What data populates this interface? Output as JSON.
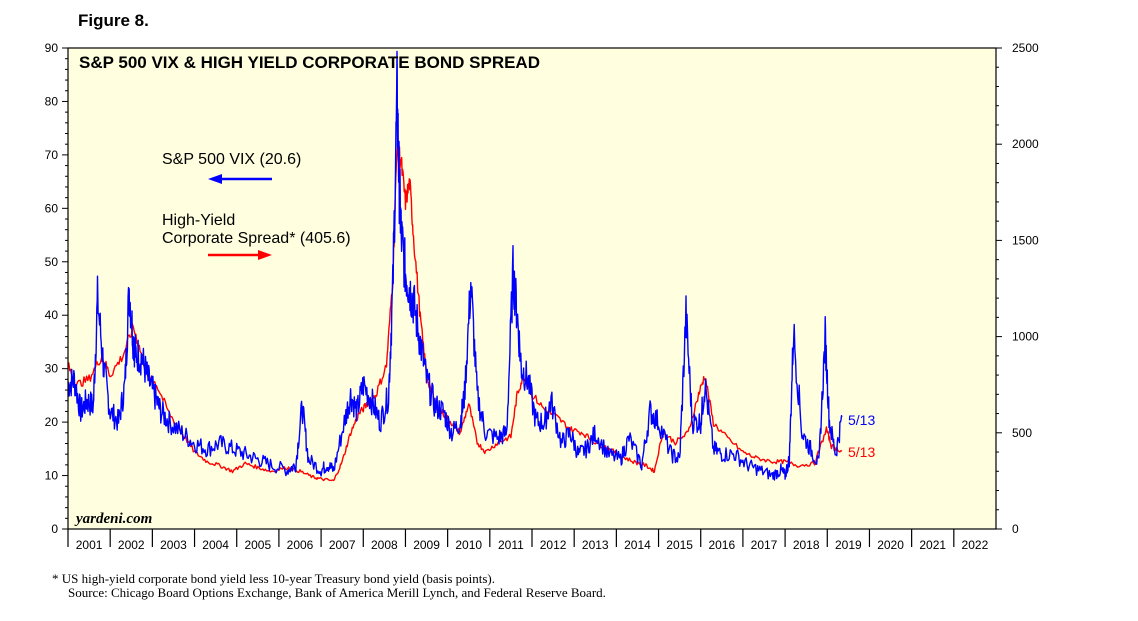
{
  "figure_label": "Figure 8.",
  "brand": "yardeni.com",
  "footnote": {
    "line1": "*   US high-yield corporate bond yield less 10-year Treasury bond yield (basis points).",
    "line2": "Source: Chicago Board Options Exchange, Bank of America Merill Lynch, and Federal Reserve Board."
  },
  "colors": {
    "vix": "#0000ff",
    "spread": "#ff0000",
    "plot_bg": "#ffffe0",
    "frame": "#000000"
  },
  "chart_data": {
    "type": "line",
    "title": "S&P 500 VIX & HIGH YIELD CORPORATE BOND SPREAD",
    "x_range": [
      2001.0,
      2023.0
    ],
    "years": [
      "2001",
      "2002",
      "2003",
      "2004",
      "2005",
      "2006",
      "2007",
      "2008",
      "2009",
      "2010",
      "2011",
      "2012",
      "2013",
      "2014",
      "2015",
      "2016",
      "2017",
      "2018",
      "2019",
      "2020",
      "2021",
      "2022"
    ],
    "y_left": {
      "min": 0,
      "max": 90,
      "ticks": [
        0,
        10,
        20,
        30,
        40,
        50,
        60,
        70,
        80,
        90
      ]
    },
    "y_right": {
      "min": 0,
      "max": 2500,
      "ticks": [
        0,
        500,
        1000,
        1500,
        2000,
        2500
      ]
    },
    "legend": [
      {
        "label": "S&P 500 VIX (20.6)",
        "axis": "left",
        "arrow": "left"
      },
      {
        "label_line1": "High-Yield",
        "label_line2": "Corporate Spread* (405.6)",
        "axis": "right",
        "arrow": "right"
      }
    ],
    "annotations": [
      {
        "text": "5/13",
        "series": "vix"
      },
      {
        "text": "5/13",
        "series": "spread"
      }
    ],
    "series": [
      {
        "name": "S&P 500 VIX (20.6)",
        "axis": "left",
        "color": "#0000ff",
        "x": [
          2001.0,
          2001.15,
          2001.3,
          2001.45,
          2001.6,
          2001.7,
          2001.85,
          2002.0,
          2002.2,
          2002.35,
          2002.45,
          2002.55,
          2002.6,
          2002.75,
          2002.9,
          2003.05,
          2003.2,
          2003.4,
          2003.7,
          2004.0,
          2004.3,
          2004.6,
          2004.9,
          2005.2,
          2005.5,
          2005.8,
          2006.2,
          2006.4,
          2006.55,
          2006.7,
          2007.0,
          2007.15,
          2007.3,
          2007.55,
          2007.7,
          2007.85,
          2008.0,
          2008.2,
          2008.4,
          2008.6,
          2008.7,
          2008.8,
          2008.85,
          2008.9,
          2009.0,
          2009.1,
          2009.2,
          2009.35,
          2009.5,
          2009.7,
          2009.9,
          2010.1,
          2010.3,
          2010.4,
          2010.55,
          2010.7,
          2010.9,
          2011.2,
          2011.4,
          2011.55,
          2011.65,
          2011.75,
          2011.9,
          2012.1,
          2012.3,
          2012.45,
          2012.7,
          2012.9,
          2013.1,
          2013.3,
          2013.5,
          2013.8,
          2014.1,
          2014.3,
          2014.6,
          2014.8,
          2015.0,
          2015.3,
          2015.5,
          2015.65,
          2015.8,
          2016.0,
          2016.1,
          2016.3,
          2016.5,
          2016.8,
          2017.1,
          2017.4,
          2017.7,
          2017.9,
          2018.0,
          2018.1,
          2018.2,
          2018.4,
          2018.6,
          2018.8,
          2018.95,
          2019.05,
          2019.2,
          2019.35
        ],
        "values": [
          27,
          28,
          22,
          24,
          23,
          43,
          30,
          22,
          20,
          27,
          45,
          35,
          33,
          32,
          28,
          25,
          22,
          20,
          18,
          16,
          15,
          16,
          15,
          14,
          13,
          12,
          11,
          12,
          23,
          13,
          11,
          12,
          11,
          20,
          25,
          22,
          27,
          24,
          20,
          25,
          45,
          81,
          65,
          55,
          48,
          45,
          42,
          35,
          28,
          23,
          22,
          18,
          20,
          25,
          46,
          25,
          18,
          17,
          18,
          48,
          40,
          30,
          28,
          20,
          20,
          24,
          16,
          18,
          14,
          15,
          18,
          14,
          13,
          17,
          12,
          22,
          20,
          14,
          13,
          40,
          20,
          20,
          27,
          15,
          14,
          14,
          12,
          11,
          10,
          11,
          10,
          13,
          37,
          18,
          15,
          12,
          36,
          20,
          14,
          21
        ]
      },
      {
        "name": "High-Yield Corporate Spread* (405.6)",
        "axis": "right",
        "color": "#ff0000",
        "x": [
          2001.0,
          2001.2,
          2001.5,
          2001.8,
          2002.0,
          2002.3,
          2002.55,
          2002.75,
          2002.9,
          2003.1,
          2003.4,
          2003.7,
          2004.0,
          2004.3,
          2004.6,
          2004.9,
          2005.2,
          2005.5,
          2005.8,
          2006.2,
          2006.5,
          2006.8,
          2007.0,
          2007.3,
          2007.5,
          2007.7,
          2007.9,
          2008.1,
          2008.3,
          2008.55,
          2008.7,
          2008.8,
          2008.9,
          2009.0,
          2009.1,
          2009.2,
          2009.35,
          2009.5,
          2009.7,
          2009.9,
          2010.1,
          2010.3,
          2010.5,
          2010.7,
          2010.9,
          2011.2,
          2011.5,
          2011.65,
          2011.8,
          2012.0,
          2012.3,
          2012.6,
          2012.9,
          2013.2,
          2013.5,
          2013.8,
          2014.1,
          2014.4,
          2014.7,
          2014.9,
          2015.1,
          2015.4,
          2015.7,
          2015.95,
          2016.1,
          2016.3,
          2016.6,
          2017.0,
          2017.3,
          2017.7,
          2018.0,
          2018.3,
          2018.7,
          2018.98,
          2019.1,
          2019.35
        ],
        "values": [
          850,
          750,
          780,
          900,
          800,
          900,
          1050,
          900,
          800,
          750,
          600,
          500,
          400,
          350,
          330,
          300,
          340,
          320,
          300,
          320,
          300,
          270,
          260,
          250,
          350,
          500,
          600,
          650,
          700,
          850,
          1300,
          2000,
          1900,
          1700,
          1800,
          1500,
          1100,
          800,
          650,
          600,
          550,
          500,
          650,
          450,
          400,
          450,
          480,
          700,
          800,
          700,
          620,
          580,
          520,
          500,
          450,
          420,
          380,
          350,
          330,
          300,
          500,
          450,
          500,
          700,
          800,
          550,
          480,
          400,
          370,
          350,
          350,
          330,
          340,
          520,
          430,
          405
        ]
      }
    ]
  }
}
